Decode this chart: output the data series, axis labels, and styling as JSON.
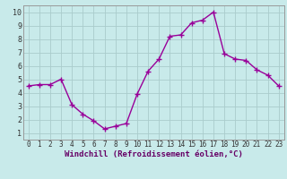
{
  "x": [
    0,
    1,
    2,
    3,
    4,
    5,
    6,
    7,
    8,
    9,
    10,
    11,
    12,
    13,
    14,
    15,
    16,
    17,
    18,
    19,
    20,
    21,
    22,
    23
  ],
  "y": [
    4.5,
    4.6,
    4.6,
    5.0,
    3.1,
    2.4,
    1.9,
    1.3,
    1.5,
    1.7,
    3.9,
    5.6,
    6.5,
    8.2,
    8.3,
    9.2,
    9.4,
    10.0,
    6.9,
    6.5,
    6.4,
    5.7,
    5.3,
    4.5
  ],
  "line_color": "#990099",
  "marker": "+",
  "markersize": 4,
  "linewidth": 1.0,
  "bg_color": "#c8eaea",
  "grid_color": "#aacccc",
  "xlabel": "Windchill (Refroidissement éolien,°C)",
  "xlabel_fontsize": 6.5,
  "xtick_fontsize": 5.5,
  "ytick_fontsize": 6,
  "xlim": [
    -0.5,
    23.5
  ],
  "ylim": [
    0.5,
    10.5
  ],
  "yticks": [
    1,
    2,
    3,
    4,
    5,
    6,
    7,
    8,
    9,
    10
  ],
  "xticks": [
    0,
    1,
    2,
    3,
    4,
    5,
    6,
    7,
    8,
    9,
    10,
    11,
    12,
    13,
    14,
    15,
    16,
    17,
    18,
    19,
    20,
    21,
    22,
    23
  ]
}
